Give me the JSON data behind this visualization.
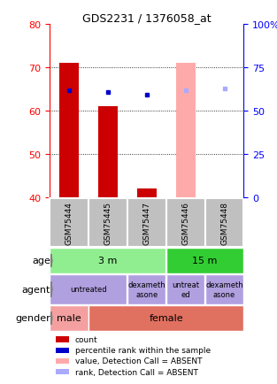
{
  "title": "GDS2231 / 1376058_at",
  "samples": [
    "GSM75444",
    "GSM75445",
    "GSM75447",
    "GSM75446",
    "GSM75448"
  ],
  "ylim_left": [
    40,
    80
  ],
  "ylim_right": [
    0,
    100
  ],
  "yticks_left": [
    40,
    50,
    60,
    70,
    80
  ],
  "yticks_right": [
    0,
    25,
    50,
    75,
    100
  ],
  "ytick_labels_right": [
    "0",
    "25",
    "50",
    "75",
    "100%"
  ],
  "dotted_lines": [
    50,
    60,
    70
  ],
  "bar_count_bottoms": [
    40,
    40,
    40,
    40,
    40
  ],
  "bar_count_tops": [
    71,
    61,
    42,
    71,
    40
  ],
  "bar_count_color": "#cc0000",
  "bar_absent_color": "#ffaaaa",
  "percentile_values": [
    62,
    61,
    59.5,
    62,
    63
  ],
  "percentile_color": "#0000cc",
  "percentile_absent_color": "#aaaaff",
  "absent_flags": [
    false,
    false,
    false,
    true,
    true
  ],
  "sample_box_color": "#c0c0c0",
  "age_spans": [
    [
      0,
      3,
      "3 m",
      "#90ee90"
    ],
    [
      3,
      5,
      "15 m",
      "#32cd32"
    ]
  ],
  "agent_spans": [
    [
      0,
      2,
      "untreated",
      "#b0a0e0"
    ],
    [
      2,
      3,
      "dexameth\nasone",
      "#b0a0e0"
    ],
    [
      3,
      4,
      "untreat\ned",
      "#b0a0e0"
    ],
    [
      4,
      5,
      "dexameth\nasone",
      "#b0a0e0"
    ]
  ],
  "gender_spans": [
    [
      0,
      1,
      "male",
      "#f4a0a0"
    ],
    [
      1,
      5,
      "female",
      "#e07060"
    ]
  ],
  "row_labels": [
    "age",
    "agent",
    "gender"
  ],
  "legend_items": [
    {
      "label": "count",
      "color": "#cc0000"
    },
    {
      "label": "percentile rank within the sample",
      "color": "#0000cc"
    },
    {
      "label": "value, Detection Call = ABSENT",
      "color": "#ffaaaa"
    },
    {
      "label": "rank, Detection Call = ABSENT",
      "color": "#aaaaff"
    }
  ]
}
